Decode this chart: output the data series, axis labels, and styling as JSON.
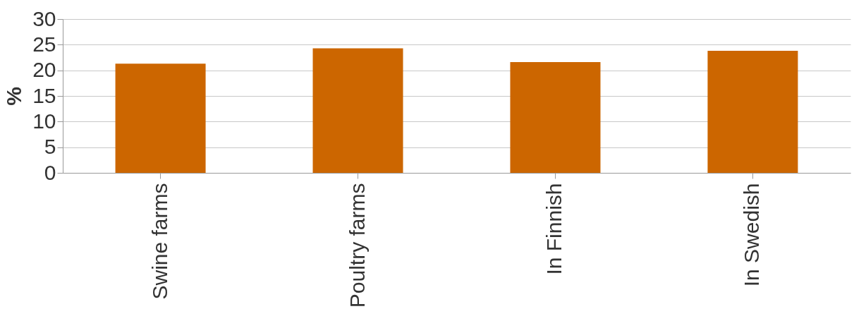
{
  "chart_data": {
    "type": "bar",
    "ylabel": "%",
    "categories": [
      "Swine farms",
      "Poultry farms",
      "In Finnish",
      "In Swedish"
    ],
    "values": [
      21.3,
      24.3,
      21.6,
      23.8
    ],
    "color": "#cc6600",
    "ylim": [
      0,
      30
    ],
    "yticks": [
      0,
      5,
      10,
      15,
      20,
      25,
      30
    ],
    "grid": "y"
  }
}
